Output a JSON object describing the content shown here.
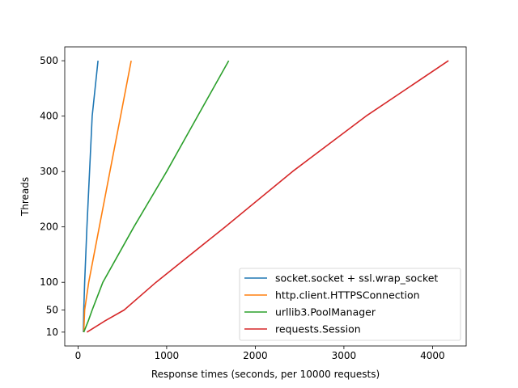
{
  "chart_data": {
    "type": "line",
    "title": "",
    "xlabel": "Response times (seconds, per 10000 requests)",
    "ylabel": "Threads",
    "xlim": [
      -150,
      4380
    ],
    "ylim": [
      -15,
      525
    ],
    "x_ticks": [
      0,
      1000,
      2000,
      3000,
      4000
    ],
    "y_ticks": [
      10,
      50,
      100,
      200,
      300,
      400,
      500
    ],
    "grid": false,
    "legend_position": "lower-right",
    "series": [
      {
        "name": "socket.socket + ssl.wrap_socket",
        "color": "#1f77b4",
        "points": [
          [
            60,
            10
          ],
          [
            65,
            50
          ],
          [
            75,
            100
          ],
          [
            100,
            200
          ],
          [
            160,
            400
          ],
          [
            225,
            500
          ]
        ]
      },
      {
        "name": "http.client.HTTPSConnection",
        "color": "#ff7f0e",
        "points": [
          [
            65,
            10
          ],
          [
            75,
            50
          ],
          [
            120,
            100
          ],
          [
            240,
            200
          ],
          [
            360,
            300
          ],
          [
            480,
            400
          ],
          [
            600,
            500
          ]
        ]
      },
      {
        "name": "urllib3.PoolManager",
        "color": "#2ca02c",
        "points": [
          [
            65,
            10
          ],
          [
            115,
            30
          ],
          [
            160,
            50
          ],
          [
            280,
            100
          ],
          [
            630,
            200
          ],
          [
            1000,
            300
          ],
          [
            1350,
            400
          ],
          [
            1700,
            500
          ]
        ]
      },
      {
        "name": "requests.Session",
        "color": "#d62728",
        "points": [
          [
            100,
            10
          ],
          [
            300,
            30
          ],
          [
            520,
            50
          ],
          [
            880,
            100
          ],
          [
            1660,
            200
          ],
          [
            2420,
            300
          ],
          [
            3250,
            400
          ],
          [
            4180,
            500
          ]
        ]
      }
    ]
  }
}
